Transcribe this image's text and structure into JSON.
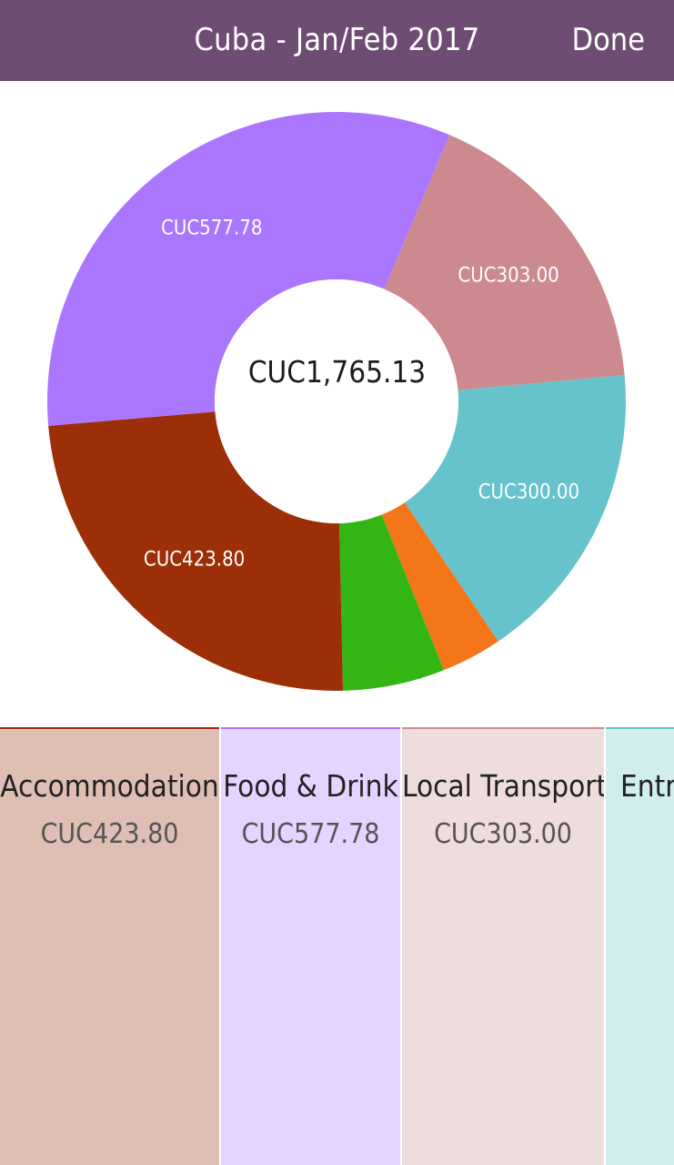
{
  "header": {
    "title": "Cuba - Jan/Feb 2017",
    "done_label": "Done"
  },
  "chart_data": {
    "type": "pie",
    "variant": "donut",
    "center_label": "CUC1,765.13",
    "slices": [
      {
        "label": "CUC303.00",
        "value": 303.0,
        "color": "#cc8a8e",
        "show_label": true
      },
      {
        "label": "CUC300.00",
        "value": 300.0,
        "color": "#66c3cc",
        "show_label": true
      },
      {
        "label": "",
        "value": 60.0,
        "color": "#f57618",
        "show_label": false
      },
      {
        "label": "",
        "value": 100.55,
        "color": "#33b614",
        "show_label": false
      },
      {
        "label": "CUC423.80",
        "value": 423.8,
        "color": "#9c2f08",
        "show_label": true
      },
      {
        "label": "CUC577.78",
        "value": 577.78,
        "color": "#ab76fe",
        "show_label": true
      }
    ]
  },
  "categories": [
    {
      "name": "Accommodation",
      "amount": "CUC423.80",
      "bg": "#dfbfb3",
      "accent": "#9c2f08"
    },
    {
      "name": "Food & Drink",
      "amount": "CUC577.78",
      "bg": "#e4d4ff",
      "accent": "#ab76fe"
    },
    {
      "name": "Local Transport",
      "amount": "CUC303.00",
      "bg": "#efdcdd",
      "accent": "#cc8a8e"
    },
    {
      "name": "Entry",
      "amount": "",
      "bg": "#d1eded",
      "accent": "#66c3cc"
    }
  ]
}
